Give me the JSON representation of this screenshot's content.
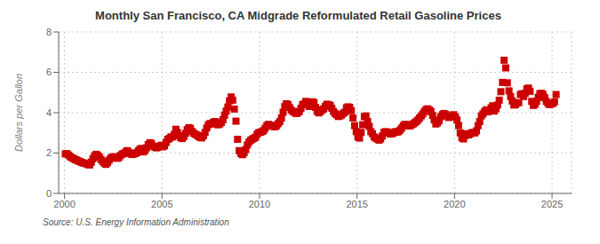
{
  "chart_data": {
    "type": "scatter",
    "title": "Monthly San Francisco, CA Midgrade Reformulated Retail Gasoline Prices",
    "ylabel": "Dollars per Gallon",
    "annotations": [
      "Source: U.S. Energy Information Administration"
    ],
    "color": "#cc0000",
    "marker": "square",
    "grid": true,
    "xlim": [
      1999.7,
      2026.0
    ],
    "ylim": [
      0,
      8
    ],
    "xticks": [
      2000,
      2005,
      2010,
      2015,
      2020,
      2025
    ],
    "yticks": [
      0,
      2,
      4,
      6,
      8
    ],
    "x": [
      2000.042,
      2000.125,
      2000.208,
      2000.292,
      2000.375,
      2000.458,
      2000.542,
      2000.625,
      2000.708,
      2000.792,
      2000.875,
      2000.958,
      2001.042,
      2001.125,
      2001.208,
      2001.292,
      2001.375,
      2001.458,
      2001.542,
      2001.625,
      2001.708,
      2001.792,
      2001.875,
      2001.958,
      2002.042,
      2002.125,
      2002.208,
      2002.292,
      2002.375,
      2002.458,
      2002.542,
      2002.625,
      2002.708,
      2002.792,
      2002.875,
      2002.958,
      2003.042,
      2003.125,
      2003.208,
      2003.292,
      2003.375,
      2003.458,
      2003.542,
      2003.625,
      2003.708,
      2003.792,
      2003.875,
      2003.958,
      2004.042,
      2004.125,
      2004.208,
      2004.292,
      2004.375,
      2004.458,
      2004.542,
      2004.625,
      2004.708,
      2004.792,
      2004.875,
      2004.958,
      2005.042,
      2005.125,
      2005.208,
      2005.292,
      2005.375,
      2005.458,
      2005.542,
      2005.625,
      2005.708,
      2005.792,
      2005.875,
      2005.958,
      2006.042,
      2006.125,
      2006.208,
      2006.292,
      2006.375,
      2006.458,
      2006.542,
      2006.625,
      2006.708,
      2006.792,
      2006.875,
      2006.958,
      2007.042,
      2007.125,
      2007.208,
      2007.292,
      2007.375,
      2007.458,
      2007.542,
      2007.625,
      2007.708,
      2007.792,
      2007.875,
      2007.958,
      2008.042,
      2008.125,
      2008.208,
      2008.292,
      2008.375,
      2008.458,
      2008.542,
      2008.625,
      2008.708,
      2008.792,
      2008.875,
      2008.958,
      2009.042,
      2009.125,
      2009.208,
      2009.292,
      2009.375,
      2009.458,
      2009.542,
      2009.625,
      2009.708,
      2009.792,
      2009.875,
      2009.958,
      2010.042,
      2010.125,
      2010.208,
      2010.292,
      2010.375,
      2010.458,
      2010.542,
      2010.625,
      2010.708,
      2010.792,
      2010.875,
      2010.958,
      2011.042,
      2011.125,
      2011.208,
      2011.292,
      2011.375,
      2011.458,
      2011.542,
      2011.625,
      2011.708,
      2011.792,
      2011.875,
      2011.958,
      2012.042,
      2012.125,
      2012.208,
      2012.292,
      2012.375,
      2012.458,
      2012.542,
      2012.625,
      2012.708,
      2012.792,
      2012.875,
      2012.958,
      2013.042,
      2013.125,
      2013.208,
      2013.292,
      2013.375,
      2013.458,
      2013.542,
      2013.625,
      2013.708,
      2013.792,
      2013.875,
      2013.958,
      2014.042,
      2014.125,
      2014.208,
      2014.292,
      2014.375,
      2014.458,
      2014.542,
      2014.625,
      2014.708,
      2014.792,
      2014.875,
      2014.958,
      2015.042,
      2015.125,
      2015.208,
      2015.292,
      2015.375,
      2015.458,
      2015.542,
      2015.625,
      2015.708,
      2015.792,
      2015.875,
      2015.958,
      2016.042,
      2016.125,
      2016.208,
      2016.292,
      2016.375,
      2016.458,
      2016.542,
      2016.625,
      2016.708,
      2016.792,
      2016.875,
      2016.958,
      2017.042,
      2017.125,
      2017.208,
      2017.292,
      2017.375,
      2017.458,
      2017.542,
      2017.625,
      2017.708,
      2017.792,
      2017.875,
      2017.958,
      2018.042,
      2018.125,
      2018.208,
      2018.292,
      2018.375,
      2018.458,
      2018.542,
      2018.625,
      2018.708,
      2018.792,
      2018.875,
      2018.958,
      2019.042,
      2019.125,
      2019.208,
      2019.292,
      2019.375,
      2019.458,
      2019.542,
      2019.625,
      2019.708,
      2019.792,
      2019.875,
      2019.958,
      2020.042,
      2020.125,
      2020.208,
      2020.292,
      2020.375,
      2020.458,
      2020.542,
      2020.625,
      2020.708,
      2020.792,
      2020.875,
      2020.958,
      2021.042,
      2021.125,
      2021.208,
      2021.292,
      2021.375,
      2021.458,
      2021.542,
      2021.625,
      2021.708,
      2021.792,
      2021.875,
      2021.958,
      2022.042,
      2022.125,
      2022.208,
      2022.292,
      2022.375,
      2022.458,
      2022.542,
      2022.625,
      2022.708,
      2022.792,
      2022.875,
      2022.958,
      2023.042,
      2023.125,
      2023.208,
      2023.292,
      2023.375,
      2023.458,
      2023.542,
      2023.625,
      2023.708,
      2023.792,
      2023.875,
      2023.958,
      2024.042,
      2024.125,
      2024.208,
      2024.292,
      2024.375,
      2024.458,
      2024.542,
      2024.625,
      2024.708,
      2024.792,
      2024.875,
      2024.958,
      2025.042,
      2025.125,
      2025.208
    ],
    "values": [
      1.96,
      1.97,
      1.9,
      1.82,
      1.77,
      1.73,
      1.68,
      1.65,
      1.61,
      1.58,
      1.54,
      1.51,
      1.49,
      1.47,
      1.43,
      1.41,
      1.55,
      1.72,
      1.86,
      1.94,
      1.88,
      1.8,
      1.68,
      1.58,
      1.5,
      1.44,
      1.53,
      1.65,
      1.75,
      1.8,
      1.82,
      1.78,
      1.74,
      1.78,
      1.88,
      1.95,
      1.98,
      2.04,
      2.12,
      2.05,
      1.98,
      1.93,
      1.95,
      1.98,
      2.02,
      2.12,
      2.19,
      2.23,
      2.06,
      2.13,
      2.26,
      2.42,
      2.51,
      2.48,
      2.35,
      2.3,
      2.26,
      2.28,
      2.33,
      2.39,
      2.31,
      2.36,
      2.52,
      2.68,
      2.72,
      2.8,
      2.8,
      2.92,
      3.18,
      3.02,
      2.86,
      2.76,
      2.72,
      2.82,
      2.98,
      3.16,
      3.26,
      3.22,
      3.07,
      2.98,
      2.93,
      2.89,
      2.82,
      2.78,
      2.75,
      2.86,
      3.02,
      3.24,
      3.4,
      3.46,
      3.44,
      3.52,
      3.56,
      3.5,
      3.4,
      3.44,
      3.52,
      3.65,
      3.88,
      4.08,
      4.28,
      4.58,
      4.78,
      4.62,
      4.18,
      3.58,
      2.68,
      2.12,
      1.98,
      1.92,
      2.01,
      2.17,
      2.4,
      2.54,
      2.63,
      2.69,
      2.73,
      2.78,
      2.93,
      3.01,
      3.03,
      3.06,
      3.11,
      3.23,
      3.36,
      3.42,
      3.38,
      3.36,
      3.32,
      3.3,
      3.36,
      3.46,
      3.56,
      3.74,
      4.02,
      4.3,
      4.44,
      4.4,
      4.26,
      4.13,
      4.06,
      4.02,
      3.96,
      3.99,
      4.06,
      4.22,
      4.4,
      4.44,
      4.56,
      4.46,
      4.31,
      4.37,
      4.54,
      4.5,
      4.26,
      4.06,
      3.99,
      4.06,
      4.14,
      4.19,
      4.32,
      4.42,
      4.39,
      4.36,
      4.22,
      4.06,
      3.96,
      3.89,
      3.81,
      3.84,
      3.89,
      3.97,
      4.02,
      4.24,
      4.29,
      4.26,
      4.1,
      3.74,
      3.36,
      3.06,
      2.8,
      2.74,
      3.02,
      3.4,
      3.8,
      3.84,
      3.56,
      3.32,
      3.06,
      2.96,
      2.8,
      2.74,
      2.7,
      2.64,
      2.7,
      2.84,
      3.02,
      3.06,
      3.04,
      3.0,
      2.94,
      2.96,
      3.0,
      3.06,
      3.04,
      3.06,
      3.14,
      3.24,
      3.36,
      3.42,
      3.4,
      3.36,
      3.34,
      3.4,
      3.44,
      3.5,
      3.56,
      3.64,
      3.74,
      3.84,
      3.94,
      4.06,
      4.16,
      4.19,
      4.13,
      4.06,
      3.86,
      3.64,
      3.44,
      3.5,
      3.6,
      3.8,
      3.9,
      3.96,
      3.92,
      3.84,
      3.76,
      3.8,
      3.84,
      3.9,
      3.8,
      3.64,
      3.36,
      3.0,
      2.76,
      2.7,
      2.86,
      2.96,
      2.9,
      2.94,
      3.0,
      3.02,
      3.0,
      3.1,
      3.36,
      3.56,
      3.84,
      3.94,
      4.06,
      4.14,
      4.04,
      4.1,
      4.24,
      4.34,
      4.08,
      4.2,
      4.38,
      4.62,
      5.04,
      5.5,
      6.6,
      6.22,
      5.48,
      5.08,
      4.8,
      4.58,
      4.38,
      4.4,
      4.48,
      4.5,
      4.9,
      4.94,
      4.8,
      4.96,
      5.18,
      5.22,
      5.06,
      4.56,
      4.36,
      4.42,
      4.56,
      4.76,
      4.94,
      4.96,
      4.9,
      4.74,
      4.56,
      4.46,
      4.4,
      4.44,
      4.46,
      4.54,
      4.9
    ]
  }
}
